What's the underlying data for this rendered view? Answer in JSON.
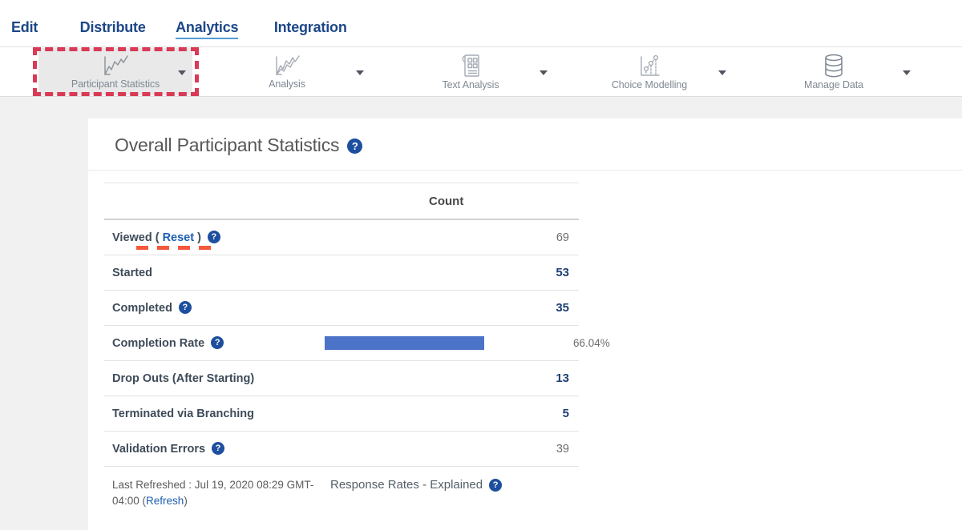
{
  "colors": {
    "nav_blue": "#1c4788",
    "active_underline": "#4e9cd8",
    "link_blue": "#1e5fb0",
    "value_navy": "#1d3f74",
    "help_icon_blue": "#1d4f9e",
    "bar_blue": "#4b73c8",
    "annotation_box_red": "#d93a56",
    "annotation_underline_orange": "#f4583c",
    "selected_toolbar_bg": "#e9e9e9"
  },
  "nav": {
    "items": [
      {
        "label": "Edit",
        "active": false
      },
      {
        "label": "Distribute",
        "active": false
      },
      {
        "label": "Analytics",
        "active": true
      },
      {
        "label": "Integration",
        "active": false
      }
    ]
  },
  "toolbar": {
    "items": [
      {
        "label": "Participant Statistics",
        "icon": "line-chart-icon",
        "selected": true
      },
      {
        "label": "Analysis",
        "icon": "area-chart-icon",
        "selected": false
      },
      {
        "label": "Text Analysis",
        "icon": "document-grid-icon",
        "selected": false
      },
      {
        "label": "Choice Modelling",
        "icon": "scatter-chart-icon",
        "selected": false
      },
      {
        "label": "Manage Data",
        "icon": "database-icon",
        "selected": false
      }
    ]
  },
  "main": {
    "title": "Overall Participant Statistics",
    "table": {
      "count_header": "Count",
      "rows": [
        {
          "label_prefix": "Viewed (",
          "link_label": "Reset",
          "label_suffix": ")",
          "value": "69",
          "has_help": true,
          "value_style": "muted"
        },
        {
          "label": "Started",
          "value": "53",
          "has_help": false,
          "value_style": "navy"
        },
        {
          "label": "Completed",
          "value": "35",
          "has_help": true,
          "value_style": "navy"
        },
        {
          "label": "Completion Rate",
          "has_help": true,
          "percent": 66.04,
          "percent_label": "66.04%"
        },
        {
          "label": "Drop Outs (After Starting)",
          "value": "13",
          "has_help": false,
          "value_style": "navy"
        },
        {
          "label": "Terminated via Branching",
          "value": "5",
          "has_help": false,
          "value_style": "navy"
        },
        {
          "label": "Validation Errors",
          "value": "39",
          "has_help": true,
          "value_style": "muted"
        }
      ]
    },
    "footer": {
      "last_refreshed_prefix": "Last Refreshed : Jul 19, 2020 08:29 GMT-04:00 (",
      "refresh_link": "Refresh",
      "last_refreshed_suffix": ")",
      "response_rates_label": "Response Rates - Explained"
    }
  }
}
